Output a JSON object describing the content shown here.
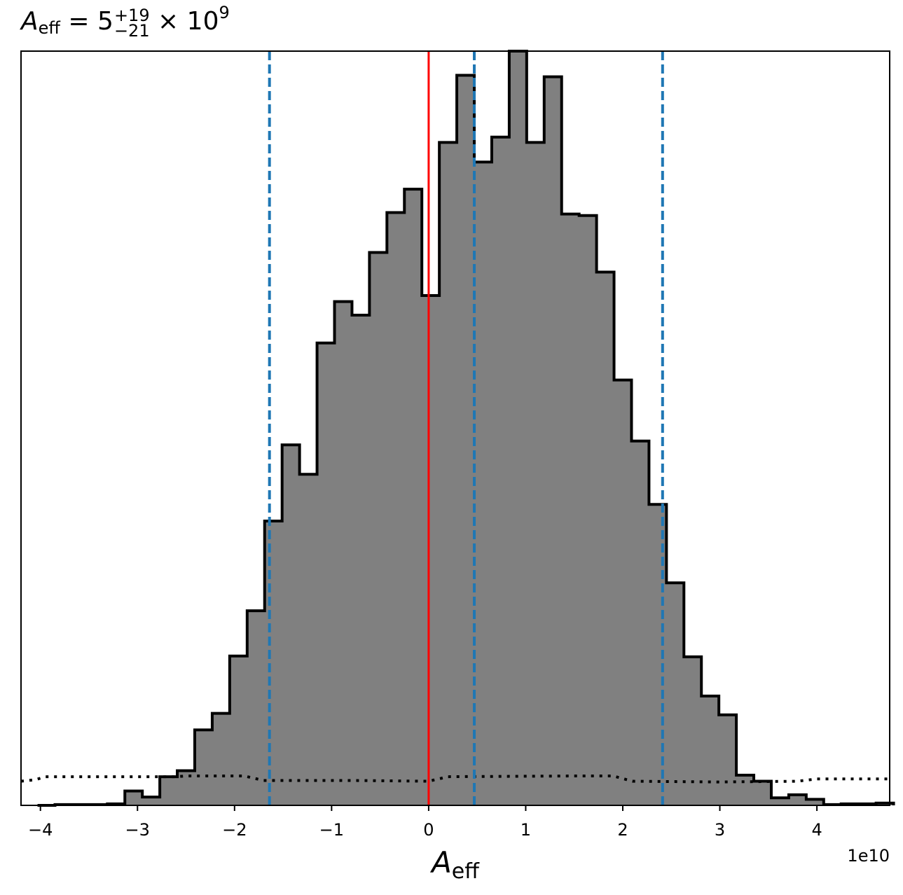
{
  "title": {
    "symbol": "A",
    "symbol_sub": "eff",
    "equals": "=",
    "value": "5",
    "upper_err": "+19",
    "lower_err": "−21",
    "times": "×",
    "base": "10",
    "exponent": "9"
  },
  "chart_data": {
    "type": "histogram",
    "title": "A_eff = 5^{+19}_{-21} × 10^9",
    "xlabel_symbol": "A",
    "xlabel_sub": "eff",
    "ylabel": "",
    "x_offset_text": "1e10",
    "xlim": [
      -4.2,
      4.75
    ],
    "ylim": [
      0,
      1.0
    ],
    "show_yticks": false,
    "grid": false,
    "xticks": [
      -4,
      -3,
      -2,
      -1,
      0,
      1,
      2,
      3,
      4
    ],
    "xtick_labels": [
      "−4",
      "−3",
      "−2",
      "−1",
      "0",
      "1",
      "2",
      "3",
      "4"
    ],
    "histogram": {
      "fill_color": "#808080",
      "edge_color": "#000000",
      "bin_edges": [
        -4.03,
        -3.85,
        -3.67,
        -3.49,
        -3.31,
        -3.13,
        -2.95,
        -2.77,
        -2.59,
        -2.41,
        -2.23,
        -2.05,
        -1.87,
        -1.69,
        -1.51,
        -1.33,
        -1.15,
        -0.97,
        -0.79,
        -0.61,
        -0.43,
        -0.25,
        -0.07,
        0.11,
        0.29,
        0.47,
        0.65,
        0.83,
        1.01,
        1.19,
        1.37,
        1.55,
        1.73,
        1.91,
        2.09,
        2.27,
        2.45,
        2.63,
        2.81,
        2.99,
        3.17,
        3.35,
        3.53,
        3.71,
        3.89,
        4.07,
        4.25,
        4.43,
        4.61,
        4.79
      ],
      "values": [
        0.0,
        0.001,
        0.001,
        0.001,
        0.002,
        0.019,
        0.011,
        0.038,
        0.046,
        0.1,
        0.122,
        0.198,
        0.258,
        0.377,
        0.478,
        0.439,
        0.613,
        0.668,
        0.65,
        0.733,
        0.786,
        0.817,
        0.676,
        0.879,
        0.968,
        0.853,
        0.886,
        1.0,
        0.879,
        0.966,
        0.784,
        0.782,
        0.707,
        0.564,
        0.483,
        0.399,
        0.295,
        0.197,
        0.145,
        0.12,
        0.04,
        0.032,
        0.01,
        0.014,
        0.008,
        0.001,
        0.002,
        0.002,
        0.003
      ]
    },
    "prior": {
      "style": "dotted",
      "color": "#000000",
      "x": [
        -4.2,
        -4.05,
        -3.95,
        -2.6,
        -2.5,
        -1.9,
        -1.7,
        -0.8,
        0.0,
        0.2,
        1.5,
        1.9,
        2.1,
        3.0,
        3.8,
        4.0,
        4.75
      ],
      "y": [
        0.032,
        0.034,
        0.038,
        0.038,
        0.039,
        0.039,
        0.033,
        0.033,
        0.032,
        0.038,
        0.039,
        0.039,
        0.032,
        0.031,
        0.032,
        0.035,
        0.035
      ]
    },
    "vlines": [
      {
        "label": "truth",
        "x": 0.0,
        "color": "#ff0000",
        "style": "solid"
      },
      {
        "label": "lower-bound",
        "x": -1.64,
        "color": "#1f77b4",
        "style": "dashed"
      },
      {
        "label": "median",
        "x": 0.47,
        "color": "#1f77b4",
        "style": "dashed"
      },
      {
        "label": "upper-bound",
        "x": 2.41,
        "color": "#1f77b4",
        "style": "dashed"
      }
    ]
  }
}
